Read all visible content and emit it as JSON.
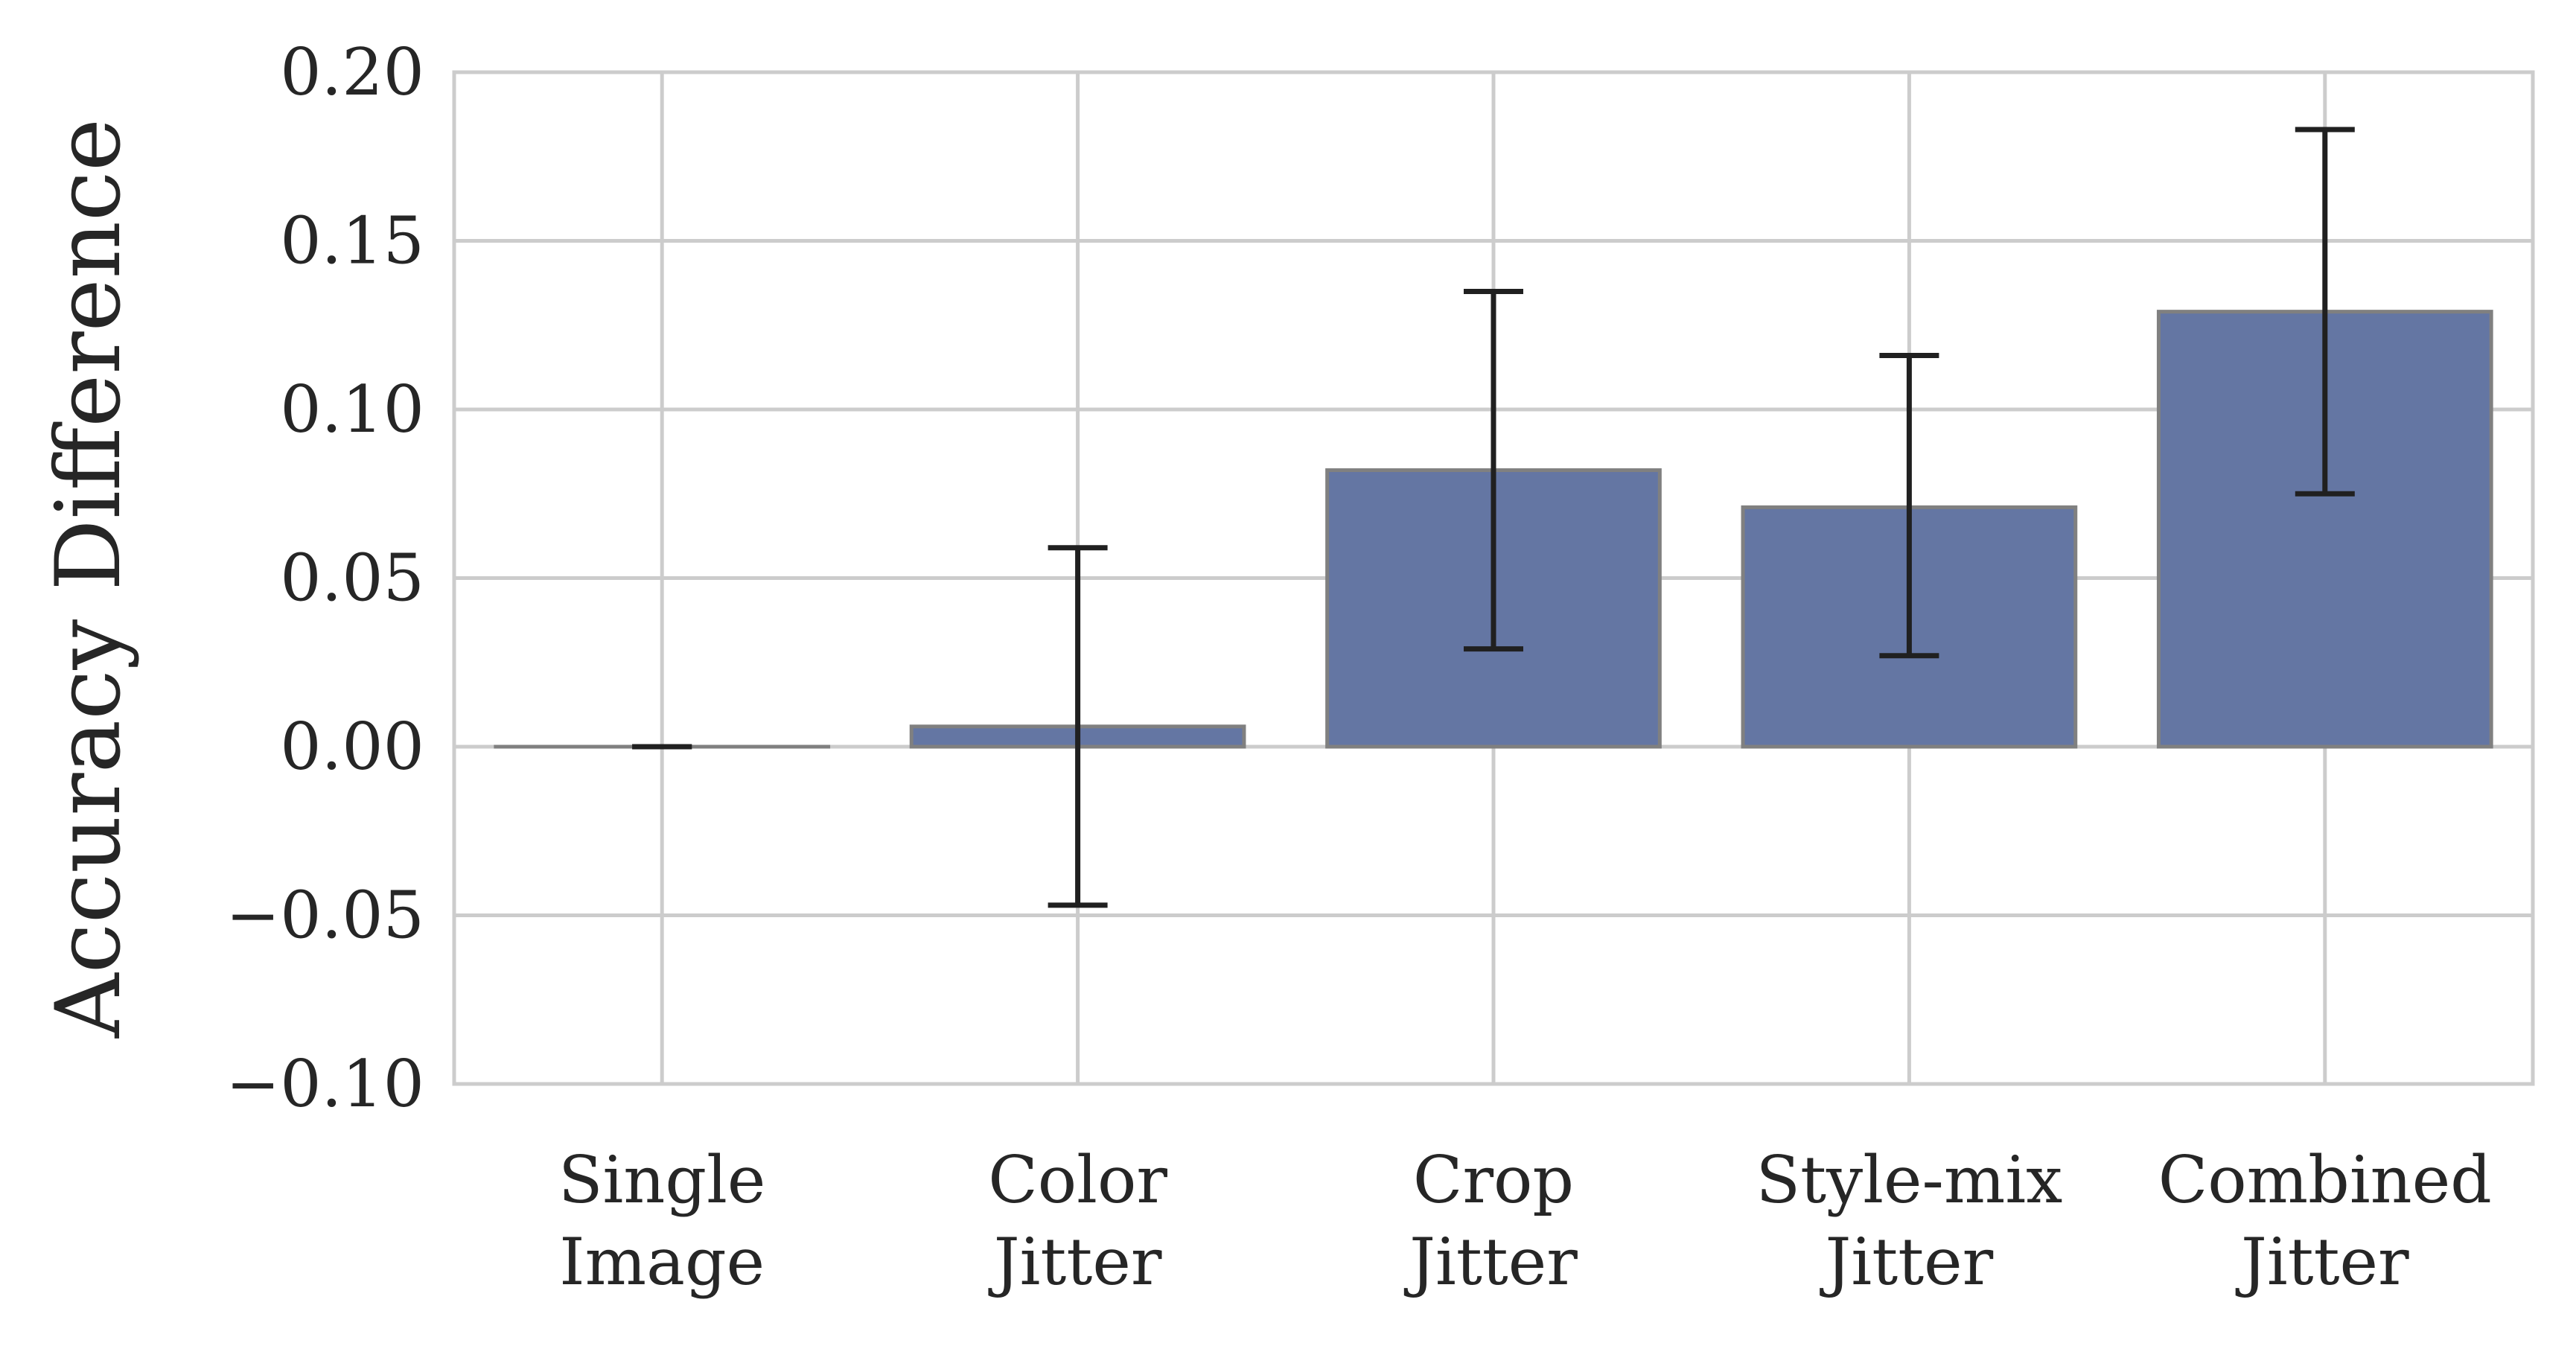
{
  "chart_data": {
    "type": "bar",
    "title": "",
    "xlabel": "",
    "ylabel": "Accuracy Difference",
    "ylim": [
      -0.1,
      0.2
    ],
    "yticks": [
      -0.1,
      -0.05,
      0.0,
      0.05,
      0.1,
      0.15,
      0.2
    ],
    "ytick_labels": [
      "−0.10",
      "−0.05",
      "0.00",
      "0.05",
      "0.10",
      "0.15",
      "0.20"
    ],
    "grid": true,
    "legend": "none",
    "categories": [
      [
        "Single",
        "Image"
      ],
      [
        "Color",
        "Jitter"
      ],
      [
        "Crop",
        "Jitter"
      ],
      [
        "Style-mix",
        "Jitter"
      ],
      [
        "Combined",
        "Jitter"
      ]
    ],
    "values": [
      0.0,
      0.006,
      0.082,
      0.071,
      0.129
    ],
    "error_low": [
      0.0,
      -0.047,
      0.029,
      0.027,
      0.075
    ],
    "error_high": [
      0.0,
      0.059,
      0.135,
      0.116,
      0.183
    ],
    "colors": {
      "bar": "#6476a3",
      "bar_edge": "#808080",
      "grid": "#cccccc",
      "error": "#202020",
      "frame": "#cccccc"
    }
  }
}
